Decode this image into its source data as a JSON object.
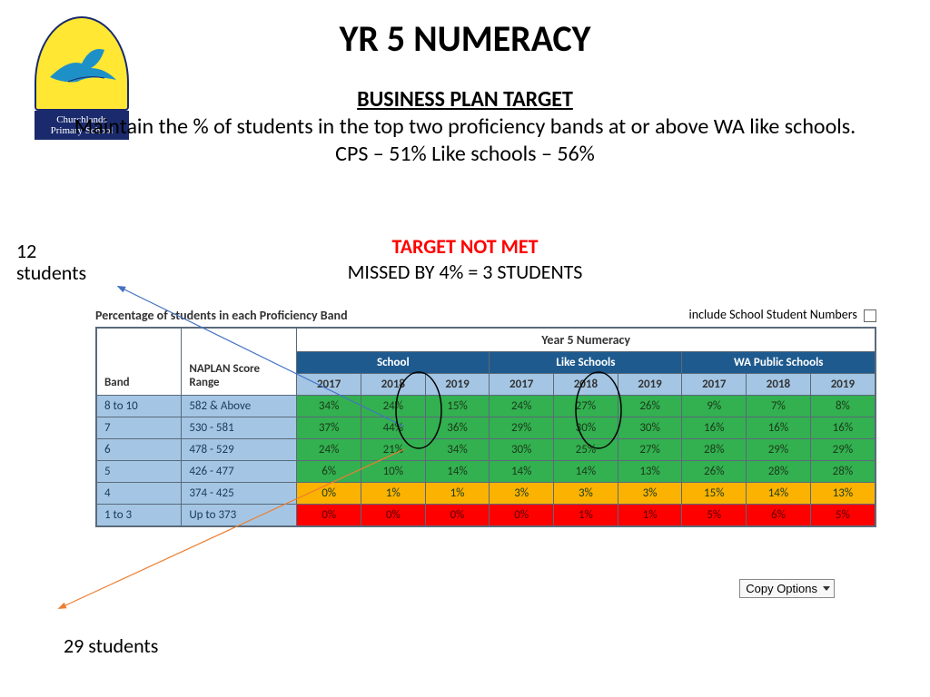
{
  "logo": {
    "line1": "Churchlands",
    "line2": "Primary School",
    "arch_bg": "#ffe733",
    "plaque_bg": "#1a2a6c",
    "bird_color": "#1e90c8"
  },
  "title": "YR 5 NUMERACY",
  "subtitle": {
    "heading": "BUSINESS PLAN TARGET",
    "line1": "Maintain the % of students in the top two proficiency bands at  or above WA like schools.",
    "line2": "CPS – 51% Like schools – 56%"
  },
  "status": {
    "not_met": "TARGET NOT MET",
    "missed_by": "MISSED BY 4% = 3 STUDENTS"
  },
  "annotations": {
    "label1_line1": "12",
    "label1_line2": "students",
    "label2": "29 students"
  },
  "arrows": {
    "blue": "#4472c4",
    "orange": "#ed7d31"
  },
  "table": {
    "caption": "Percentage of students in each Proficiency Band",
    "checkbox_label": "include School Student Numbers",
    "super_header": "Year 5 Numeracy",
    "band_header": "Band",
    "range_header": "NAPLAN Score Range",
    "groups": [
      "School",
      "Like Schools",
      "WA Public Schools"
    ],
    "years": [
      "2017",
      "2018",
      "2019"
    ],
    "copy_options": "Copy Options",
    "colors": {
      "green": "#33b050",
      "amber": "#fbb200",
      "red": "#ff0000",
      "header_blue": "#1e5a8e",
      "year_blue": "#a4c6e4",
      "row_blue": "#a4c6e4"
    },
    "rows": [
      {
        "band": "8 to 10",
        "range": "582 & Above",
        "cells": [
          {
            "v": "34%",
            "c": "green"
          },
          {
            "v": "24%",
            "c": "green"
          },
          {
            "v": "15%",
            "c": "green"
          },
          {
            "v": "24%",
            "c": "green"
          },
          {
            "v": "27%",
            "c": "green"
          },
          {
            "v": "26%",
            "c": "green"
          },
          {
            "v": "9%",
            "c": "green"
          },
          {
            "v": "7%",
            "c": "green"
          },
          {
            "v": "8%",
            "c": "green"
          }
        ]
      },
      {
        "band": "7",
        "range": "530 - 581",
        "cells": [
          {
            "v": "37%",
            "c": "green"
          },
          {
            "v": "44%",
            "c": "green"
          },
          {
            "v": "36%",
            "c": "green"
          },
          {
            "v": "29%",
            "c": "green"
          },
          {
            "v": "30%",
            "c": "green"
          },
          {
            "v": "30%",
            "c": "green"
          },
          {
            "v": "16%",
            "c": "green"
          },
          {
            "v": "16%",
            "c": "green"
          },
          {
            "v": "16%",
            "c": "green"
          }
        ]
      },
      {
        "band": "6",
        "range": "478 - 529",
        "cells": [
          {
            "v": "24%",
            "c": "green"
          },
          {
            "v": "21%",
            "c": "green"
          },
          {
            "v": "34%",
            "c": "green"
          },
          {
            "v": "30%",
            "c": "green"
          },
          {
            "v": "25%",
            "c": "green"
          },
          {
            "v": "27%",
            "c": "green"
          },
          {
            "v": "28%",
            "c": "green"
          },
          {
            "v": "29%",
            "c": "green"
          },
          {
            "v": "29%",
            "c": "green"
          }
        ]
      },
      {
        "band": "5",
        "range": "426 - 477",
        "cells": [
          {
            "v": "6%",
            "c": "green"
          },
          {
            "v": "10%",
            "c": "green"
          },
          {
            "v": "14%",
            "c": "green"
          },
          {
            "v": "14%",
            "c": "green"
          },
          {
            "v": "14%",
            "c": "green"
          },
          {
            "v": "13%",
            "c": "green"
          },
          {
            "v": "26%",
            "c": "green"
          },
          {
            "v": "28%",
            "c": "green"
          },
          {
            "v": "28%",
            "c": "green"
          }
        ]
      },
      {
        "band": "4",
        "range": "374 - 425",
        "cells": [
          {
            "v": "0%",
            "c": "amber"
          },
          {
            "v": "1%",
            "c": "amber"
          },
          {
            "v": "1%",
            "c": "amber"
          },
          {
            "v": "3%",
            "c": "amber"
          },
          {
            "v": "3%",
            "c": "amber"
          },
          {
            "v": "3%",
            "c": "amber"
          },
          {
            "v": "15%",
            "c": "amber"
          },
          {
            "v": "14%",
            "c": "amber"
          },
          {
            "v": "13%",
            "c": "amber"
          }
        ]
      },
      {
        "band": "1 to 3",
        "range": "Up to 373",
        "cells": [
          {
            "v": "0%",
            "c": "red"
          },
          {
            "v": "0%",
            "c": "red"
          },
          {
            "v": "0%",
            "c": "red"
          },
          {
            "v": "0%",
            "c": "red"
          },
          {
            "v": "1%",
            "c": "red"
          },
          {
            "v": "1%",
            "c": "red"
          },
          {
            "v": "5%",
            "c": "red"
          },
          {
            "v": "6%",
            "c": "red"
          },
          {
            "v": "5%",
            "c": "red"
          }
        ]
      }
    ]
  }
}
